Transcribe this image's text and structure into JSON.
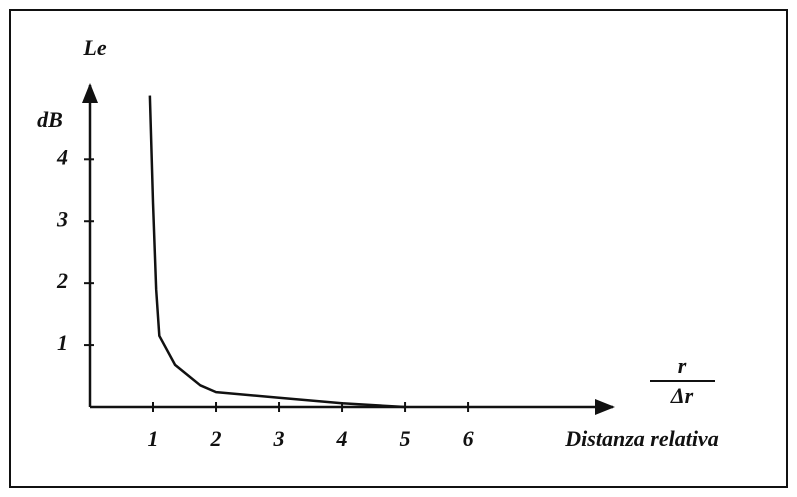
{
  "chart_data": {
    "type": "line",
    "y_label": "Le",
    "y_unit": "dB",
    "x_label": "Distanza relativa",
    "x_fraction": {
      "numerator": "r",
      "denominator": "Δr"
    },
    "xlim": [
      0,
      8.3
    ],
    "ylim": [
      0,
      5.2
    ],
    "xticks": [
      1,
      2,
      3,
      4,
      5,
      6
    ],
    "yticks": [
      1,
      2,
      3,
      4
    ],
    "x": [
      0.95,
      1.0,
      1.05,
      1.1,
      1.35,
      1.75,
      2,
      3,
      4,
      5
    ],
    "series": [
      {
        "color": "#111111",
        "values": [
          5.03,
          3.3,
          1.9,
          1.15,
          0.68,
          0.35,
          0.24,
          0.15,
          0.06,
          0
        ]
      }
    ]
  }
}
